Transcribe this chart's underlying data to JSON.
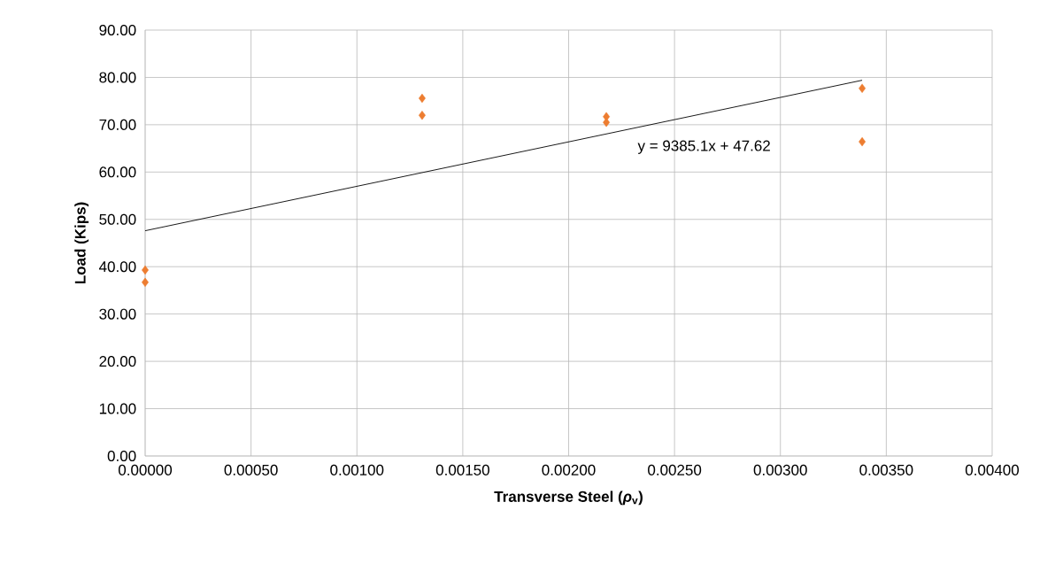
{
  "chart_data": {
    "type": "scatter",
    "xlabel": "Transverse Steel (*ρ*$_{v}$)",
    "ylabel": "Load (Kips)",
    "series": [
      {
        "color": "#ed7d31",
        "marker": "diamond",
        "x": [
          0,
          0,
          0.001308,
          0.001308,
          0.002178,
          0.002178,
          0.003386,
          0.003386
        ],
        "values": [
          39.3,
          36.7,
          75.6,
          72.0,
          71.7,
          70.5,
          77.7,
          66.4
        ]
      },
      {
        "type": "line",
        "color": "#000000",
        "marker": "none",
        "x": [
          0,
          0.003386
        ],
        "values": [
          47.6,
          79.4
        ]
      }
    ],
    "annotations": [
      "y = 9385.1x + 47.62"
    ],
    "xlim": [
      0,
      0.004
    ],
    "ylim": [
      0,
      90
    ],
    "xticks": [
      {
        "value": 0,
        "label": "0.00000"
      },
      {
        "value": 0.0005,
        "label": "0.00050"
      },
      {
        "value": 0.001,
        "label": "0.00100"
      },
      {
        "value": 0.0015,
        "label": "0.00150"
      },
      {
        "value": 0.002,
        "label": "0.00200"
      },
      {
        "value": 0.0025,
        "label": "0.00250"
      },
      {
        "value": 0.003,
        "label": "0.00300"
      },
      {
        "value": 0.0035,
        "label": "0.00350"
      },
      {
        "value": 0.004,
        "label": "0.00400"
      }
    ],
    "yticks": [
      {
        "value": 0,
        "label": "0.00"
      },
      {
        "value": 10,
        "label": "10.00"
      },
      {
        "value": 20,
        "label": "20.00"
      },
      {
        "value": 30,
        "label": "30.00"
      },
      {
        "value": 40,
        "label": "40.00"
      },
      {
        "value": 50,
        "label": "50.00"
      },
      {
        "value": 60,
        "label": "60.00"
      },
      {
        "value": 70,
        "label": "70.00"
      },
      {
        "value": 80,
        "label": "80.00"
      },
      {
        "value": 90,
        "label": "90.00"
      }
    ],
    "grid": true
  }
}
